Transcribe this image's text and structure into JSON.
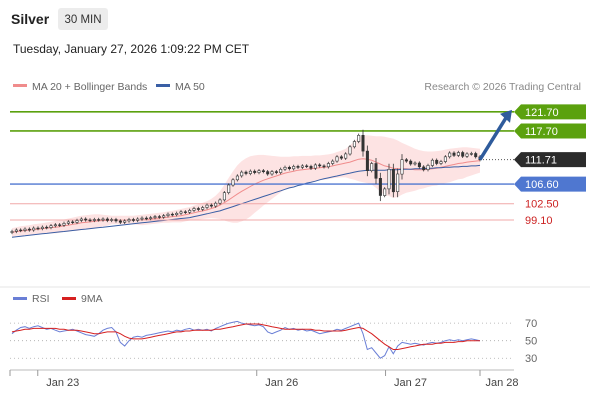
{
  "header": {
    "instrument": "Silver",
    "timeframe": "30 MIN",
    "datetime": "Tuesday, January 27, 2026 1:09:22 PM CET",
    "copyright": "Research © 2026 Trading Central"
  },
  "legend": {
    "ma20": "MA 20 + Bollinger Bands",
    "ma50": "MA 50",
    "rsi": "RSI",
    "ma9": "9MA"
  },
  "colors": {
    "candle": "#333333",
    "bollinger_fill": "#fde3e3",
    "ma20": "#f08c8c",
    "ma50": "#3a5fa5",
    "resistance": "#5ba10e",
    "support_blue": "#4f77d0",
    "support_red": "#f0a8a8",
    "support_red_text": "#cc2222",
    "arrow": "#2e5b9c",
    "rsi": "#6a7fd6",
    "rsi_ma": "#d62020",
    "last_price_box": "#2b2b2b"
  },
  "chart_data": [
    {
      "type": "candlestick",
      "title": "Silver",
      "timeframe": "30 MIN",
      "x_ticks": [
        "Jan 23",
        "Jan 26",
        "Jan 27",
        "Jan 28"
      ],
      "y_range": [
        87.6,
        124.8
      ],
      "levels": [
        {
          "value": 121.7,
          "label": "121.70",
          "kind": "resistance"
        },
        {
          "value": 117.7,
          "label": "117.70",
          "kind": "resistance"
        },
        {
          "value": 106.6,
          "label": "106.60",
          "kind": "pivot"
        },
        {
          "value": 102.5,
          "label": "102.50",
          "kind": "support"
        },
        {
          "value": 99.1,
          "label": "99.10",
          "kind": "support"
        }
      ],
      "last_price": {
        "value": 111.71,
        "label": "111.71"
      },
      "target_arrow": {
        "from": 111.71,
        "to": 121.7
      },
      "close": [
        96.7,
        97.0,
        96.9,
        97.2,
        97.0,
        97.4,
        97.3,
        97.6,
        97.5,
        97.9,
        98.1,
        98.0,
        98.4,
        98.7,
        98.6,
        99.0,
        99.3,
        99.1,
        99.0,
        99.2,
        99.1,
        99.3,
        99.0,
        99.2,
        98.9,
        98.6,
        98.9,
        99.2,
        99.0,
        99.3,
        99.5,
        99.4,
        99.6,
        99.8,
        99.7,
        100.0,
        100.3,
        100.2,
        100.5,
        100.8,
        100.7,
        101.1,
        101.5,
        101.3,
        101.7,
        102.2,
        102.0,
        102.6,
        103.3,
        104.8,
        106.4,
        107.5,
        108.3,
        109.1,
        108.8,
        109.3,
        109.0,
        109.4,
        109.2,
        108.7,
        109.2,
        109.0,
        109.7,
        110.1,
        109.8,
        110.3,
        110.1,
        110.4,
        110.3,
        109.9,
        110.6,
        110.4,
        110.2,
        110.9,
        111.4,
        112.3,
        112.0,
        112.9,
        114.4,
        115.5,
        116.8,
        113.5,
        109.4,
        110.9,
        107.8,
        104.2,
        105.6,
        109.7,
        105.0,
        108.7,
        111.7,
        111.4,
        110.8,
        111.0,
        110.2,
        109.6,
        110.5,
        111.6,
        110.9,
        111.3,
        112.3,
        113.1,
        112.6,
        113.2,
        112.4,
        112.9,
        113.0,
        112.3,
        111.7
      ],
      "open": [
        96.5,
        96.7,
        97.0,
        96.9,
        97.2,
        97.0,
        97.4,
        97.3,
        97.6,
        97.5,
        97.9,
        98.1,
        98.0,
        98.4,
        98.7,
        98.6,
        99.0,
        99.3,
        99.1,
        99.0,
        99.2,
        99.1,
        99.3,
        99.0,
        99.2,
        98.9,
        98.6,
        98.9,
        99.2,
        99.0,
        99.3,
        99.5,
        99.4,
        99.6,
        99.8,
        99.7,
        100.0,
        100.3,
        100.2,
        100.5,
        100.8,
        100.7,
        101.1,
        101.5,
        101.3,
        101.7,
        102.2,
        102.0,
        102.6,
        103.3,
        104.8,
        106.4,
        107.5,
        108.3,
        109.1,
        108.8,
        109.3,
        109.0,
        109.4,
        109.2,
        108.7,
        109.2,
        109.0,
        109.7,
        110.1,
        109.8,
        110.3,
        110.1,
        110.4,
        110.3,
        109.9,
        110.6,
        110.4,
        110.2,
        110.9,
        111.4,
        112.3,
        112.0,
        112.9,
        114.4,
        115.5,
        116.8,
        113.5,
        109.4,
        110.9,
        107.8,
        104.2,
        105.6,
        109.7,
        105.0,
        108.7,
        111.7,
        111.4,
        110.8,
        111.0,
        110.2,
        109.6,
        110.5,
        111.6,
        110.9,
        111.3,
        112.3,
        113.1,
        112.6,
        113.2,
        112.4,
        112.9,
        113.0,
        112.3
      ],
      "ma20": [
        96.5,
        96.7,
        96.8,
        96.9,
        97.0,
        97.1,
        97.2,
        97.3,
        97.4,
        97.5,
        97.6,
        97.7,
        97.9,
        98.0,
        98.2,
        98.3,
        98.5,
        98.6,
        98.7,
        98.8,
        98.9,
        99.0,
        99.0,
        99.1,
        99.1,
        99.1,
        99.1,
        99.1,
        99.1,
        99.1,
        99.1,
        99.2,
        99.3,
        99.4,
        99.5,
        99.6,
        99.7,
        99.8,
        99.9,
        100.0,
        100.2,
        100.4,
        100.6,
        100.8,
        101.0,
        101.2,
        101.5,
        101.8,
        102.2,
        102.7,
        103.3,
        103.9,
        104.5,
        105.1,
        105.6,
        106.1,
        106.6,
        107.0,
        107.4,
        107.7,
        108.0,
        108.3,
        108.6,
        108.9,
        109.1,
        109.3,
        109.5,
        109.6,
        109.7,
        109.8,
        109.9,
        110.0,
        110.1,
        110.2,
        110.4,
        110.6,
        110.8,
        111.0,
        111.2,
        111.5,
        111.8,
        111.9,
        111.8,
        111.6,
        111.2,
        110.8,
        110.4,
        110.2,
        109.9,
        109.8,
        109.8,
        109.8,
        109.7,
        109.6,
        109.6,
        109.6,
        109.7,
        109.8,
        109.9,
        110.1,
        110.3,
        110.5,
        110.7,
        110.9,
        111.0,
        111.2,
        111.3,
        111.4,
        111.5
      ],
      "bb_upper": [
        97.4,
        97.6,
        97.8,
        97.9,
        98.0,
        98.2,
        98.3,
        98.4,
        98.6,
        98.7,
        98.9,
        99.0,
        99.2,
        99.4,
        99.6,
        99.8,
        100.0,
        100.1,
        100.2,
        100.3,
        100.3,
        100.2,
        100.1,
        100.0,
        100.0,
        100.0,
        100.0,
        100.0,
        100.0,
        100.1,
        100.2,
        100.3,
        100.4,
        100.5,
        100.6,
        100.7,
        100.9,
        101.0,
        101.2,
        101.4,
        101.6,
        101.8,
        102.1,
        102.4,
        102.7,
        103.0,
        103.5,
        104.2,
        105.1,
        106.4,
        107.9,
        109.3,
        110.5,
        111.4,
        112.0,
        112.4,
        112.6,
        112.7,
        112.7,
        112.6,
        112.5,
        112.4,
        112.3,
        112.3,
        112.3,
        112.4,
        112.4,
        112.5,
        112.5,
        112.5,
        112.6,
        112.6,
        112.7,
        112.8,
        113.0,
        113.3,
        113.6,
        114.0,
        114.7,
        115.5,
        116.4,
        116.8,
        116.8,
        116.7,
        116.6,
        116.6,
        116.5,
        116.3,
        116.1,
        115.7,
        115.2,
        114.8,
        114.4,
        114.0,
        113.7,
        113.5,
        113.4,
        113.4,
        113.5,
        113.6,
        113.8,
        114.0,
        114.1,
        114.2,
        114.3,
        114.3,
        114.2,
        114.1,
        114.0
      ],
      "bb_lower": [
        95.6,
        95.8,
        95.8,
        95.9,
        96.0,
        96.0,
        96.1,
        96.2,
        96.2,
        96.3,
        96.3,
        96.4,
        96.6,
        96.6,
        96.8,
        96.8,
        97.0,
        97.1,
        97.2,
        97.3,
        97.5,
        97.8,
        97.9,
        98.2,
        98.2,
        98.2,
        98.2,
        98.2,
        98.2,
        98.1,
        98.0,
        98.1,
        98.2,
        98.3,
        98.4,
        98.5,
        98.5,
        98.6,
        98.6,
        98.6,
        98.8,
        99.0,
        99.1,
        99.2,
        99.3,
        99.4,
        99.5,
        99.4,
        99.3,
        99.0,
        98.7,
        98.5,
        98.5,
        98.8,
        99.2,
        99.8,
        100.6,
        101.3,
        102.1,
        102.8,
        103.5,
        104.2,
        104.9,
        105.5,
        105.9,
        106.2,
        106.6,
        106.7,
        106.9,
        107.1,
        107.2,
        107.4,
        107.5,
        107.6,
        107.8,
        107.9,
        108.0,
        108.0,
        107.7,
        107.5,
        107.2,
        107.0,
        106.8,
        106.5,
        105.8,
        105.0,
        104.3,
        104.1,
        103.7,
        103.9,
        104.4,
        104.8,
        105.0,
        105.2,
        105.5,
        105.7,
        106.0,
        106.2,
        106.3,
        106.6,
        106.8,
        107.0,
        107.3,
        107.6,
        107.7,
        108.1,
        108.4,
        108.7,
        109.0
      ],
      "ma50": [
        95.5,
        95.6,
        95.7,
        95.8,
        95.9,
        96.0,
        96.1,
        96.2,
        96.3,
        96.4,
        96.5,
        96.6,
        96.7,
        96.8,
        96.9,
        97.0,
        97.1,
        97.2,
        97.3,
        97.4,
        97.5,
        97.6,
        97.7,
        97.8,
        97.9,
        98.0,
        98.1,
        98.2,
        98.3,
        98.4,
        98.5,
        98.6,
        98.7,
        98.8,
        98.9,
        99.0,
        99.1,
        99.2,
        99.3,
        99.4,
        99.5,
        99.6,
        99.8,
        100.0,
        100.2,
        100.4,
        100.6,
        100.8,
        101.0,
        101.3,
        101.6,
        101.9,
        102.2,
        102.5,
        102.8,
        103.1,
        103.4,
        103.7,
        104.0,
        104.3,
        104.6,
        104.9,
        105.2,
        105.5,
        105.8,
        106.0,
        106.3,
        106.5,
        106.8,
        107.0,
        107.2,
        107.5,
        107.7,
        107.9,
        108.1,
        108.3,
        108.5,
        108.7,
        108.9,
        109.1,
        109.3,
        109.4,
        109.5,
        109.5,
        109.5,
        109.5,
        109.5,
        109.6,
        109.6,
        109.6,
        109.7,
        109.7,
        109.7,
        109.8,
        109.8,
        109.8,
        109.9,
        109.9,
        110.0,
        110.0,
        110.1,
        110.1,
        110.2,
        110.2,
        110.3,
        110.3,
        110.4,
        110.4,
        110.5
      ]
    },
    {
      "type": "line",
      "title": "RSI",
      "y_ticks": [
        70,
        50,
        30
      ],
      "y_range": [
        20,
        85
      ],
      "series": [
        {
          "name": "RSI",
          "values": [
            58,
            62,
            65,
            66,
            64,
            66,
            67,
            65,
            63,
            64,
            62,
            60,
            61,
            62,
            63,
            61,
            59,
            57,
            56,
            55,
            58,
            62,
            64,
            65,
            60,
            48,
            44,
            50,
            54,
            55,
            54,
            56,
            57,
            58,
            59,
            60,
            61,
            60,
            62,
            61,
            63,
            64,
            62,
            63,
            62,
            63,
            61,
            64,
            66,
            68,
            70,
            71,
            72,
            70,
            69,
            68,
            67,
            68,
            66,
            60,
            58,
            60,
            62,
            65,
            63,
            64,
            62,
            63,
            61,
            62,
            60,
            58,
            59,
            60,
            61,
            63,
            62,
            64,
            66,
            68,
            70,
            58,
            40,
            42,
            36,
            30,
            33,
            43,
            35,
            44,
            48,
            47,
            46,
            47,
            46,
            45,
            47,
            48,
            47,
            48,
            50,
            51,
            50,
            51,
            50,
            51,
            52,
            51,
            50
          ]
        },
        {
          "name": "9MA",
          "values": [
            60,
            61,
            62,
            63,
            63,
            64,
            64,
            64,
            64,
            64,
            64,
            63,
            63,
            62,
            62,
            62,
            61,
            60,
            59,
            58,
            58,
            59,
            60,
            60,
            60,
            58,
            55,
            53,
            52,
            52,
            52,
            53,
            54,
            55,
            56,
            57,
            58,
            59,
            60,
            60,
            61,
            61,
            62,
            62,
            62,
            62,
            62,
            63,
            63,
            64,
            65,
            66,
            67,
            68,
            69,
            69,
            69,
            69,
            68,
            67,
            66,
            65,
            64,
            63,
            63,
            63,
            63,
            63,
            63,
            63,
            62,
            62,
            61,
            61,
            61,
            61,
            61,
            62,
            63,
            64,
            65,
            64,
            61,
            58,
            54,
            50,
            46,
            43,
            40,
            40,
            41,
            42,
            43,
            44,
            45,
            46,
            46,
            46,
            47,
            47,
            48,
            48,
            48,
            49,
            49,
            50,
            50,
            50,
            50
          ]
        }
      ]
    }
  ]
}
